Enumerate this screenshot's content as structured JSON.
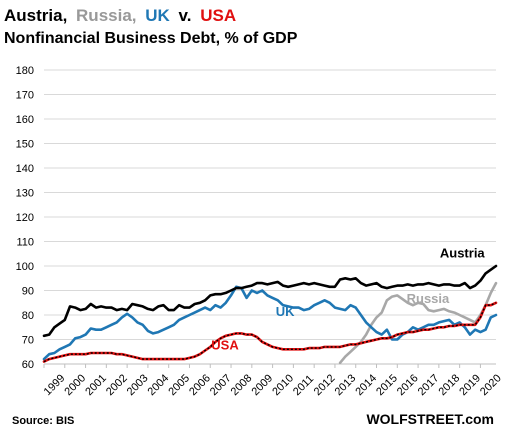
{
  "title": {
    "parts": [
      {
        "text": "Austria,",
        "color": "#000000"
      },
      {
        "text": "Russia,",
        "color": "#999999"
      },
      {
        "text": "UK",
        "color": "#1F77B4"
      },
      {
        "text": "v.",
        "color": "#000000"
      },
      {
        "text": "USA",
        "color": "#E01010"
      }
    ],
    "subtitle": "Nonfinancial Business Debt, % of GDP"
  },
  "footer": {
    "source": "Source: BIS",
    "brand": "WOLFSTREET.com"
  },
  "chart_data": {
    "type": "line",
    "title": "Austria, Russia, UK v. USA",
    "subtitle": "Nonfinancial Business Debt, % of GDP",
    "ylim": [
      60,
      180
    ],
    "yticks": [
      60,
      70,
      80,
      90,
      100,
      110,
      120,
      130,
      140,
      150,
      160,
      170,
      180
    ],
    "xlim": [
      1999.0,
      2020.75
    ],
    "xticks": [
      "1999",
      "2000",
      "2001",
      "2002",
      "2003",
      "2004",
      "2005",
      "2006",
      "2007",
      "2008",
      "2009",
      "2010",
      "2011",
      "2012",
      "2013",
      "2014",
      "2015",
      "2016",
      "2017",
      "2018",
      "2019",
      "2020"
    ],
    "grid": true,
    "series": [
      {
        "name": "Austria",
        "color": "#000000",
        "x": [
          1999.0,
          1999.25,
          1999.5,
          1999.75,
          2000.0,
          2000.25,
          2000.5,
          2000.75,
          2001.0,
          2001.25,
          2001.5,
          2001.75,
          2002.0,
          2002.25,
          2002.5,
          2002.75,
          2003.0,
          2003.25,
          2003.5,
          2003.75,
          2004.0,
          2004.25,
          2004.5,
          2004.75,
          2005.0,
          2005.25,
          2005.5,
          2005.75,
          2006.0,
          2006.25,
          2006.5,
          2006.75,
          2007.0,
          2007.25,
          2007.5,
          2007.75,
          2008.0,
          2008.25,
          2008.5,
          2008.75,
          2009.0,
          2009.25,
          2009.5,
          2009.75,
          2010.0,
          2010.25,
          2010.5,
          2010.75,
          2011.0,
          2011.25,
          2011.5,
          2011.75,
          2012.0,
          2012.25,
          2012.5,
          2012.75,
          2013.0,
          2013.25,
          2013.5,
          2013.75,
          2014.0,
          2014.25,
          2014.5,
          2014.75,
          2015.0,
          2015.25,
          2015.5,
          2015.75,
          2016.0,
          2016.25,
          2016.5,
          2016.75,
          2017.0,
          2017.25,
          2017.5,
          2017.75,
          2018.0,
          2018.25,
          2018.5,
          2018.75,
          2019.0,
          2019.25,
          2019.5,
          2019.75,
          2020.0,
          2020.25,
          2020.5,
          2020.75
        ],
        "values": [
          71.5,
          72,
          75,
          76.5,
          78,
          83.5,
          83,
          82,
          82.5,
          84.5,
          83,
          83.5,
          83,
          83,
          82,
          82.5,
          82,
          84.5,
          84,
          83.5,
          82.5,
          82,
          83.5,
          84,
          82,
          82,
          84,
          83,
          83,
          84.5,
          85,
          86,
          88,
          88.5,
          88.5,
          89,
          90,
          91,
          91,
          91.5,
          92,
          93,
          93,
          92.5,
          93,
          93.5,
          92,
          91.5,
          92,
          92.5,
          93,
          92.5,
          93,
          92.5,
          92,
          91.5,
          91.5,
          94.5,
          95,
          94.5,
          95,
          93,
          92,
          92.5,
          93,
          91.5,
          91,
          91.5,
          92,
          92,
          92.5,
          92,
          92.5,
          92.5,
          93,
          92.5,
          92,
          92.5,
          92.5,
          92,
          92,
          93,
          91,
          92,
          94,
          97,
          98.5,
          100
        ]
      },
      {
        "name": "Russia",
        "color": "#A8A8A8",
        "x": [
          2013.25,
          2013.5,
          2013.75,
          2014.0,
          2014.25,
          2014.5,
          2014.75,
          2015.0,
          2015.25,
          2015.5,
          2015.75,
          2016.0,
          2016.25,
          2016.5,
          2016.75,
          2017.0,
          2017.25,
          2017.5,
          2017.75,
          2018.0,
          2018.25,
          2018.5,
          2018.75,
          2019.0,
          2019.25,
          2019.5,
          2019.75,
          2020.0,
          2020.25,
          2020.5,
          2020.75
        ],
        "values": [
          60.5,
          63,
          65,
          67,
          69,
          72,
          76,
          79,
          81,
          86,
          87.5,
          88,
          86.5,
          85,
          84,
          85,
          84.5,
          82,
          81.5,
          82,
          82.5,
          81.5,
          81,
          80,
          79,
          78,
          77,
          80,
          84,
          89,
          93
        ]
      },
      {
        "name": "UK",
        "color": "#1F77B4",
        "x": [
          1999.0,
          1999.25,
          1999.5,
          1999.75,
          2000.0,
          2000.25,
          2000.5,
          2000.75,
          2001.0,
          2001.25,
          2001.5,
          2001.75,
          2002.0,
          2002.25,
          2002.5,
          2002.75,
          2003.0,
          2003.25,
          2003.5,
          2003.75,
          2004.0,
          2004.25,
          2004.5,
          2004.75,
          2005.0,
          2005.25,
          2005.5,
          2005.75,
          2006.0,
          2006.25,
          2006.5,
          2006.75,
          2007.0,
          2007.25,
          2007.5,
          2007.75,
          2008.0,
          2008.25,
          2008.5,
          2008.75,
          2009.0,
          2009.25,
          2009.5,
          2009.75,
          2010.0,
          2010.25,
          2010.5,
          2010.75,
          2011.0,
          2011.25,
          2011.5,
          2011.75,
          2012.0,
          2012.25,
          2012.5,
          2012.75,
          2013.0,
          2013.25,
          2013.5,
          2013.75,
          2014.0,
          2014.25,
          2014.5,
          2014.75,
          2015.0,
          2015.25,
          2015.5,
          2015.75,
          2016.0,
          2016.25,
          2016.5,
          2016.75,
          2017.0,
          2017.25,
          2017.5,
          2017.75,
          2018.0,
          2018.25,
          2018.5,
          2018.75,
          2019.0,
          2019.25,
          2019.5,
          2019.75,
          2020.0,
          2020.25,
          2020.5,
          2020.75
        ],
        "values": [
          62,
          64,
          64.5,
          66,
          67,
          68,
          70.5,
          71,
          72,
          74.5,
          74,
          74,
          75,
          76,
          77,
          79,
          80.5,
          79,
          77,
          76,
          73.5,
          72.5,
          73,
          74,
          75,
          76,
          78,
          79,
          80,
          81,
          82,
          83,
          82,
          84,
          83,
          85,
          88,
          91.5,
          91,
          87,
          90,
          89,
          90,
          88,
          87,
          86,
          84,
          83.5,
          83,
          83,
          82,
          82.5,
          84,
          85,
          86,
          85,
          83,
          82.5,
          82,
          84,
          83,
          80,
          77,
          75,
          73,
          72,
          74,
          70,
          70,
          72,
          73,
          75,
          74,
          75,
          76,
          76,
          77,
          77.5,
          78,
          76,
          77,
          75,
          72,
          74,
          73,
          74,
          79,
          80
        ]
      },
      {
        "name": "USA",
        "color": "#E01010",
        "x": [
          1999.0,
          1999.25,
          1999.5,
          1999.75,
          2000.0,
          2000.25,
          2000.5,
          2000.75,
          2001.0,
          2001.25,
          2001.5,
          2001.75,
          2002.0,
          2002.25,
          2002.5,
          2002.75,
          2003.0,
          2003.25,
          2003.5,
          2003.75,
          2004.0,
          2004.25,
          2004.5,
          2004.75,
          2005.0,
          2005.25,
          2005.5,
          2005.75,
          2006.0,
          2006.25,
          2006.5,
          2006.75,
          2007.0,
          2007.25,
          2007.5,
          2007.75,
          2008.0,
          2008.25,
          2008.5,
          2008.75,
          2009.0,
          2009.25,
          2009.5,
          2009.75,
          2010.0,
          2010.25,
          2010.5,
          2010.75,
          2011.0,
          2011.25,
          2011.5,
          2011.75,
          2012.0,
          2012.25,
          2012.5,
          2012.75,
          2013.0,
          2013.25,
          2013.5,
          2013.75,
          2014.0,
          2014.25,
          2014.5,
          2014.75,
          2015.0,
          2015.25,
          2015.5,
          2015.75,
          2016.0,
          2016.25,
          2016.5,
          2016.75,
          2017.0,
          2017.25,
          2017.5,
          2017.75,
          2018.0,
          2018.25,
          2018.5,
          2018.75,
          2019.0,
          2019.25,
          2019.5,
          2019.75,
          2020.0,
          2020.25,
          2020.5,
          2020.75
        ],
        "values": [
          61,
          62,
          62.5,
          63,
          63.5,
          64,
          64,
          64,
          64,
          64.5,
          64.5,
          64.5,
          64.5,
          64.5,
          64,
          64,
          63.5,
          63,
          62.5,
          62,
          62,
          62,
          62,
          62,
          62,
          62,
          62,
          62,
          62.5,
          63,
          64,
          65.5,
          67,
          69,
          70.5,
          71.5,
          72,
          72.5,
          72.5,
          72,
          72,
          71,
          69,
          68,
          67,
          66.5,
          66,
          66,
          66,
          66,
          66,
          66.5,
          66.5,
          66.5,
          67,
          67,
          67,
          67,
          67.5,
          68,
          68,
          68.5,
          69,
          69.5,
          70,
          70.5,
          70.5,
          71,
          72,
          72.5,
          73,
          73,
          73.5,
          74,
          74,
          74.5,
          75,
          75,
          75.5,
          75.5,
          76,
          76,
          76,
          76,
          79,
          84,
          84,
          85
        ]
      }
    ],
    "labels": [
      {
        "text": "Austria",
        "series": "Austria"
      },
      {
        "text": "Russia",
        "series": "Russia"
      },
      {
        "text": "UK",
        "series": "UK"
      },
      {
        "text": "USA",
        "series": "USA"
      }
    ]
  }
}
